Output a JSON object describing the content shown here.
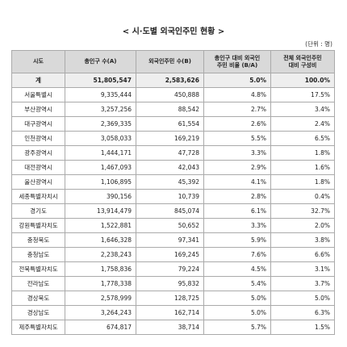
{
  "header": {
    "title": "< 시·도별 외국인주민 현황 >",
    "unit": "(단위 : 명)"
  },
  "table": {
    "columns": [
      "시도",
      "총인구 수(A)",
      "외국인주민 수(B)",
      "총인구 대비 외국인\n주민 비율 (B/A)",
      "전체 외국인주민\n대비 구성비"
    ],
    "rows": [
      [
        "계",
        "51,805,547",
        "2,583,626",
        "5.0%",
        "100.0%"
      ],
      [
        "서울특별시",
        "9,335,444",
        "450,888",
        "4.8%",
        "17.5%"
      ],
      [
        "부산광역시",
        "3,257,256",
        "88,542",
        "2.7%",
        "3.4%"
      ],
      [
        "대구광역시",
        "2,369,335",
        "61,554",
        "2.6%",
        "2.4%"
      ],
      [
        "인천광역시",
        "3,058,033",
        "169,219",
        "5.5%",
        "6.5%"
      ],
      [
        "광주광역시",
        "1,444,171",
        "47,728",
        "3.3%",
        "1.8%"
      ],
      [
        "대전광역시",
        "1,467,093",
        "42,043",
        "2.9%",
        "1.6%"
      ],
      [
        "울산광역시",
        "1,106,895",
        "45,392",
        "4.1%",
        "1.8%"
      ],
      [
        "세종특별자치시",
        "390,156",
        "10,739",
        "2.8%",
        "0.4%"
      ],
      [
        "경기도",
        "13,914,479",
        "845,074",
        "6.1%",
        "32.7%"
      ],
      [
        "강원특별자치도",
        "1,522,881",
        "50,652",
        "3.3%",
        "2.0%"
      ],
      [
        "충청북도",
        "1,646,328",
        "97,341",
        "5.9%",
        "3.8%"
      ],
      [
        "충청남도",
        "2,238,243",
        "169,245",
        "7.6%",
        "6.6%"
      ],
      [
        "전북특별자치도",
        "1,758,836",
        "79,224",
        "4.5%",
        "3.1%"
      ],
      [
        "전라남도",
        "1,778,338",
        "95,832",
        "5.4%",
        "3.7%"
      ],
      [
        "경상북도",
        "2,578,999",
        "128,725",
        "5.0%",
        "5.0%"
      ],
      [
        "경상남도",
        "3,264,243",
        "162,714",
        "5.0%",
        "6.3%"
      ],
      [
        "제주특별자치도",
        "674,817",
        "38,714",
        "5.7%",
        "1.5%"
      ]
    ]
  }
}
